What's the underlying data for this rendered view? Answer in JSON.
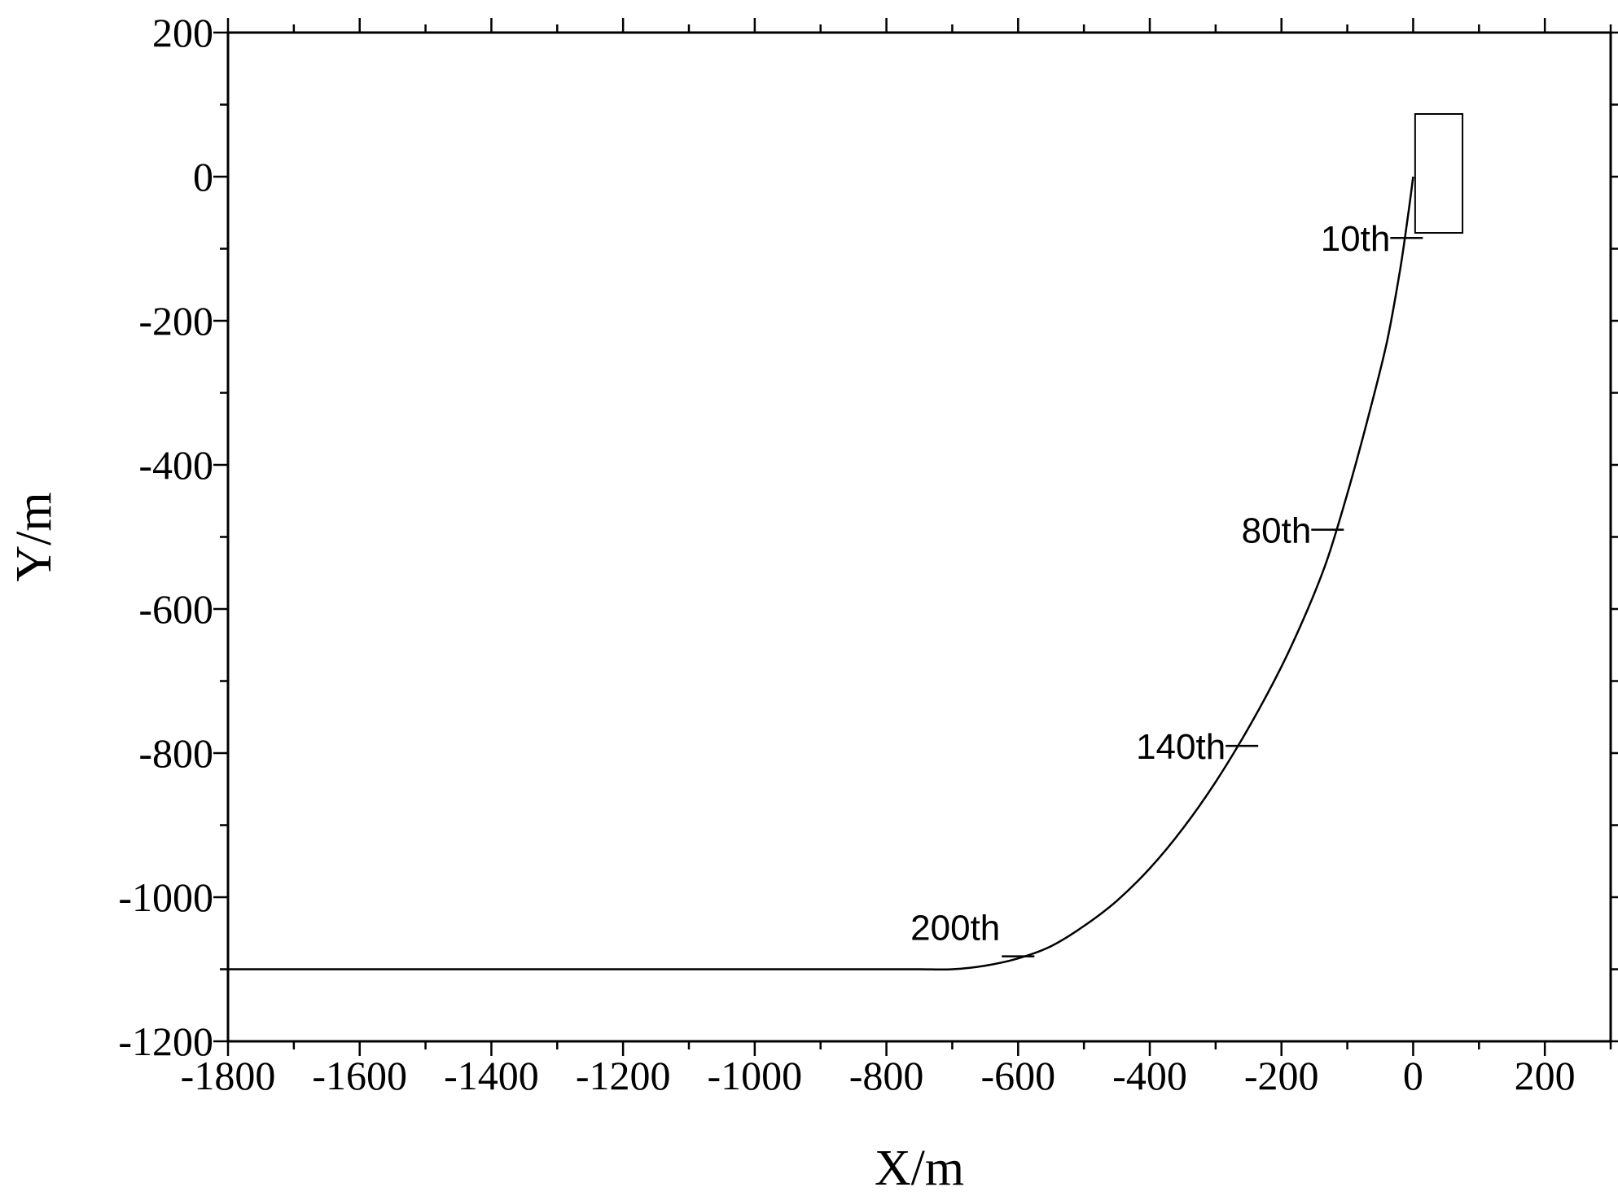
{
  "chart_data": {
    "type": "line",
    "title": "",
    "xlabel": "X/m",
    "ylabel": "Y/m",
    "xlim": [
      -1800,
      300
    ],
    "ylim": [
      -1200,
      200
    ],
    "x_ticks": [
      -1800,
      -1600,
      -1400,
      -1200,
      -1000,
      -800,
      -600,
      -400,
      -200,
      0,
      200
    ],
    "x_tick_labels": [
      "-1800",
      "-1600",
      "-1400",
      "-1200",
      "-1000",
      "-800",
      "-600",
      "-400",
      "-200",
      "0",
      "200"
    ],
    "y_ticks": [
      200,
      0,
      -200,
      -400,
      -600,
      -800,
      -1000,
      -1200
    ],
    "y_tick_labels": [
      "200",
      "0",
      "-200",
      "-400",
      "-600",
      "-800",
      "-1000",
      "-1200"
    ],
    "grid": false,
    "legend": "none",
    "series": [
      {
        "x": [
          0,
          -8,
          -20,
          -40,
          -70,
          -100,
          -130,
          -160,
          -200,
          -250,
          -300,
          -350,
          -400,
          -450,
          -500,
          -550,
          -600,
          -650,
          -700,
          -750,
          -800,
          -1000,
          -1200,
          -1400,
          -1600,
          -1800
        ],
        "y": [
          0,
          -55,
          -130,
          -230,
          -340,
          -440,
          -530,
          -600,
          -680,
          -765,
          -840,
          -905,
          -960,
          -1005,
          -1040,
          -1068,
          -1085,
          -1095,
          -1100,
          -1100,
          -1100,
          -1100,
          -1100,
          -1100,
          -1100,
          -1100
        ]
      }
    ],
    "markers": [
      {
        "label": "10th",
        "x": -10,
        "y": -85
      },
      {
        "label": "80th",
        "x": -130,
        "y": -490
      },
      {
        "label": "140th",
        "x": -260,
        "y": -790
      },
      {
        "label": "200th",
        "x": -600,
        "y": -1082
      }
    ],
    "rectangle": {
      "x0": 3,
      "x1": 75,
      "y0": -78,
      "y1": 87
    }
  }
}
